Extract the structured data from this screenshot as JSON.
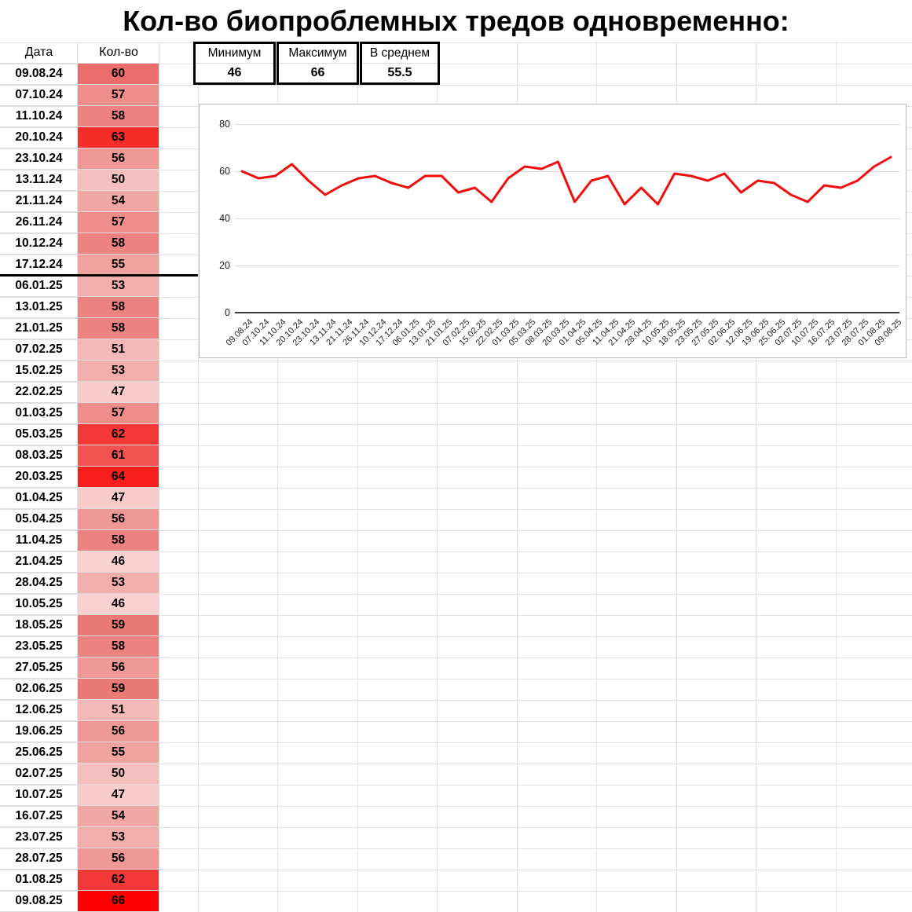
{
  "title": "Кол-во биопроблемных тредов одновременно:",
  "table": {
    "headers": {
      "date": "Дата",
      "count": "Кол-во"
    },
    "rows": [
      {
        "date": "09.08.24",
        "value": "60",
        "color": "#EC6E6C"
      },
      {
        "date": "07.10.24",
        "value": "57",
        "color": "#EE8D8A"
      },
      {
        "date": "11.10.24",
        "value": "58",
        "color": "#EC8380"
      },
      {
        "date": "20.10.24",
        "value": "63",
        "color": "#F52C2A"
      },
      {
        "date": "23.10.24",
        "value": "56",
        "color": "#EF9895"
      },
      {
        "date": "13.11.24",
        "value": "50",
        "color": "#F5BFBD"
      },
      {
        "date": "21.11.24",
        "value": "54",
        "color": "#F1A8A5"
      },
      {
        "date": "26.11.24",
        "value": "57",
        "color": "#EE8D8A"
      },
      {
        "date": "10.12.24",
        "value": "58",
        "color": "#EC8380"
      },
      {
        "date": "17.12.24",
        "value": "55",
        "color": "#F0A29F"
      },
      {
        "date": "06.01.25",
        "value": "53",
        "color": "#F2AEAB"
      },
      {
        "date": "13.01.25",
        "value": "58",
        "color": "#EC8380"
      },
      {
        "date": "21.01.25",
        "value": "58",
        "color": "#EC8380"
      },
      {
        "date": "07.02.25",
        "value": "51",
        "color": "#F4B9B7"
      },
      {
        "date": "15.02.25",
        "value": "53",
        "color": "#F2AEAB"
      },
      {
        "date": "22.02.25",
        "value": "47",
        "color": "#F7CBCA"
      },
      {
        "date": "01.03.25",
        "value": "57",
        "color": "#EE8D8A"
      },
      {
        "date": "05.03.25",
        "value": "62",
        "color": "#F33937"
      },
      {
        "date": "08.03.25",
        "value": "61",
        "color": "#F05350"
      },
      {
        "date": "20.03.25",
        "value": "64",
        "color": "#F61E1C"
      },
      {
        "date": "01.04.25",
        "value": "47",
        "color": "#F7CBCA"
      },
      {
        "date": "05.04.25",
        "value": "56",
        "color": "#EF9895"
      },
      {
        "date": "11.04.25",
        "value": "58",
        "color": "#EC8380"
      },
      {
        "date": "21.04.25",
        "value": "46",
        "color": "#F8D1D0"
      },
      {
        "date": "28.04.25",
        "value": "53",
        "color": "#F2AEAB"
      },
      {
        "date": "10.05.25",
        "value": "46",
        "color": "#F8D1D0"
      },
      {
        "date": "18.05.25",
        "value": "59",
        "color": "#EB7976"
      },
      {
        "date": "23.05.25",
        "value": "58",
        "color": "#EC8380"
      },
      {
        "date": "27.05.25",
        "value": "56",
        "color": "#EF9895"
      },
      {
        "date": "02.06.25",
        "value": "59",
        "color": "#EB7976"
      },
      {
        "date": "12.06.25",
        "value": "51",
        "color": "#F4B9B7"
      },
      {
        "date": "19.06.25",
        "value": "56",
        "color": "#EF9895"
      },
      {
        "date": "25.06.25",
        "value": "55",
        "color": "#F0A29F"
      },
      {
        "date": "02.07.25",
        "value": "50",
        "color": "#F5BFBD"
      },
      {
        "date": "10.07.25",
        "value": "47",
        "color": "#F7CBCA"
      },
      {
        "date": "16.07.25",
        "value": "54",
        "color": "#F1A8A5"
      },
      {
        "date": "23.07.25",
        "value": "53",
        "color": "#F2AEAB"
      },
      {
        "date": "28.07.25",
        "value": "56",
        "color": "#EF9895"
      },
      {
        "date": "01.08.25",
        "value": "62",
        "color": "#F33937"
      },
      {
        "date": "09.08.25",
        "value": "66",
        "color": "#FF0000"
      }
    ]
  },
  "summary": [
    {
      "label": "Минимум",
      "value": "46"
    },
    {
      "label": "Максимум",
      "value": "66"
    },
    {
      "label": "В среднем",
      "value": "55.5"
    }
  ],
  "chart_data": {
    "type": "line",
    "title": "",
    "xlabel": "",
    "ylabel": "",
    "x": [
      "09.08.24",
      "07.10.24",
      "11.10.24",
      "20.10.24",
      "23.10.24",
      "13.11.24",
      "21.11.24",
      "26.11.24",
      "10.12.24",
      "17.12.24",
      "06.01.25",
      "13.01.25",
      "21.01.25",
      "07.02.25",
      "15.02.25",
      "22.02.25",
      "01.03.25",
      "05.03.25",
      "08.03.25",
      "20.03.25",
      "01.04.25",
      "05.04.25",
      "11.04.25",
      "21.04.25",
      "28.04.25",
      "10.05.25",
      "18.05.25",
      "23.05.25",
      "27.05.25",
      "02.06.25",
      "12.06.25",
      "19.06.25",
      "25.06.25",
      "02.07.25",
      "10.07.25",
      "16.07.25",
      "23.07.25",
      "28.07.25",
      "01.08.25",
      "09.08.25"
    ],
    "values": [
      60,
      57,
      58,
      63,
      56,
      50,
      54,
      57,
      58,
      55,
      53,
      58,
      58,
      51,
      53,
      47,
      57,
      62,
      61,
      64,
      47,
      56,
      58,
      46,
      53,
      46,
      59,
      58,
      56,
      59,
      51,
      56,
      55,
      50,
      47,
      54,
      53,
      56,
      62,
      66
    ],
    "yticks": [
      0,
      20,
      40,
      60,
      80
    ],
    "ylim": [
      0,
      80
    ],
    "grid": true,
    "legend_position": "none",
    "line_color": "#F20D0D"
  }
}
